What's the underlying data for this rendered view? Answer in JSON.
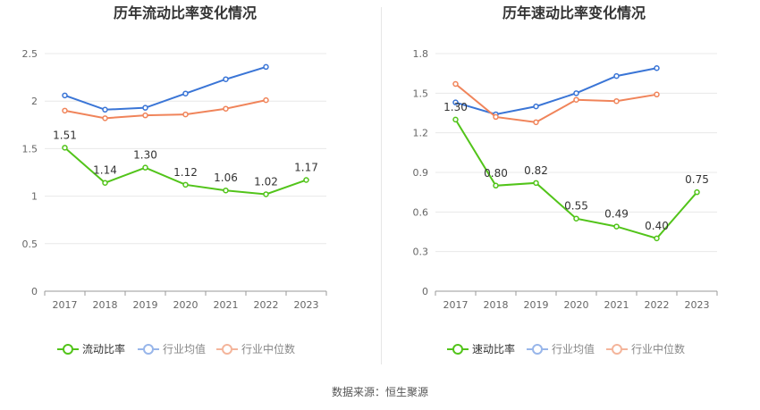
{
  "chart_data": [
    {
      "type": "line",
      "title": "历年流动比率变化情况",
      "categories": [
        "2017",
        "2018",
        "2019",
        "2020",
        "2021",
        "2022",
        "2023"
      ],
      "ylim": [
        0,
        2.5
      ],
      "yticks": [
        "0",
        "0.5",
        "1",
        "1.5",
        "2",
        "2.5"
      ],
      "ytick_values": [
        0,
        0.5,
        1,
        1.5,
        2,
        2.5
      ],
      "grid": true,
      "legend_position": "bottom",
      "series": [
        {
          "name": "流动比率",
          "color": "#52c41a",
          "values": [
            1.51,
            1.14,
            1.3,
            1.12,
            1.06,
            1.02,
            1.17
          ],
          "labels": [
            "1.51",
            "1.14",
            "1.30",
            "1.12",
            "1.06",
            "1.02",
            "1.17"
          ]
        },
        {
          "name": "行业均值",
          "color": "#3a75d6",
          "values": [
            2.06,
            1.91,
            1.93,
            2.08,
            2.23,
            2.36,
            null
          ]
        },
        {
          "name": "行业中位数",
          "color": "#f0845a",
          "values": [
            1.9,
            1.82,
            1.85,
            1.86,
            1.92,
            2.01,
            null
          ]
        }
      ]
    },
    {
      "type": "line",
      "title": "历年速动比率变化情况",
      "categories": [
        "2017",
        "2018",
        "2019",
        "2020",
        "2021",
        "2022",
        "2023"
      ],
      "ylim": [
        0,
        1.8
      ],
      "yticks": [
        "0",
        "0.3",
        "0.6",
        "0.9",
        "1.2",
        "1.5",
        "1.8"
      ],
      "ytick_values": [
        0,
        0.3,
        0.6,
        0.9,
        1.2,
        1.5,
        1.8
      ],
      "grid": true,
      "legend_position": "bottom",
      "series": [
        {
          "name": "速动比率",
          "color": "#52c41a",
          "values": [
            1.3,
            0.8,
            0.82,
            0.55,
            0.49,
            0.4,
            0.75
          ],
          "labels": [
            "1.30",
            "0.80",
            "0.82",
            "0.55",
            "0.49",
            "0.40",
            "0.75"
          ]
        },
        {
          "name": "行业均值",
          "color": "#3a75d6",
          "values": [
            1.43,
            1.34,
            1.4,
            1.5,
            1.63,
            1.69,
            null
          ]
        },
        {
          "name": "行业中位数",
          "color": "#f0845a",
          "values": [
            1.57,
            1.32,
            1.28,
            1.45,
            1.44,
            1.49,
            null
          ]
        }
      ]
    }
  ],
  "source_text": "数据来源：恒生聚源"
}
